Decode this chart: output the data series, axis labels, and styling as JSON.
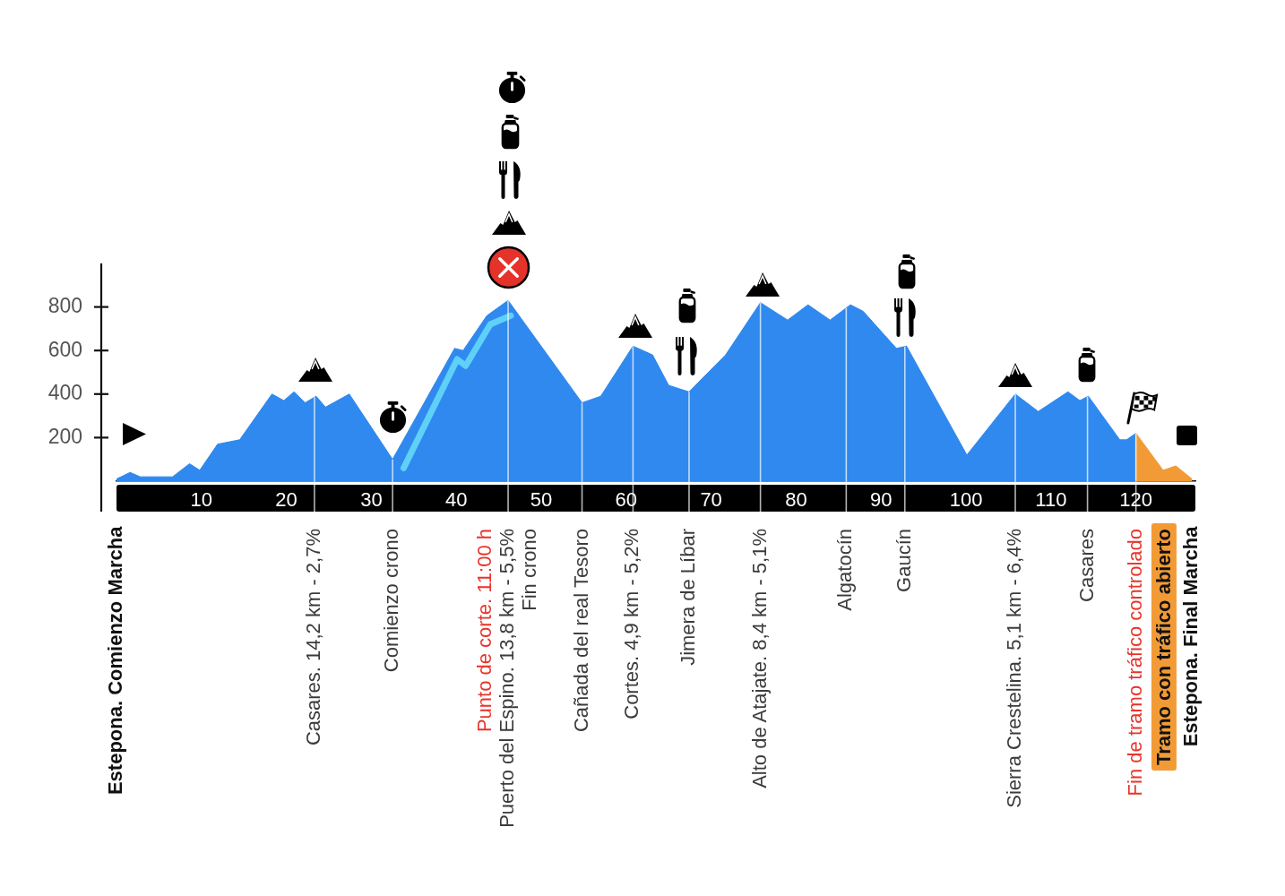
{
  "chart_data": {
    "type": "area",
    "xlim": [
      0,
      127
    ],
    "xticks": [
      10,
      20,
      30,
      40,
      50,
      60,
      70,
      80,
      90,
      100,
      110,
      120
    ],
    "ylim": [
      0,
      1000
    ],
    "yticks": [
      200,
      400,
      600,
      800
    ],
    "series": [
      {
        "type": "area",
        "color": "#2f89ee",
        "x": [
          0,
          1.6,
          2.8,
          6.6,
          8.6,
          9.8,
          11.9,
          14.5,
          18.3,
          19.7,
          20.9,
          22.2,
          23.5,
          24.6,
          27.4,
          32.5,
          39.8,
          40.8,
          43.6,
          46.1,
          54.8,
          57.0,
          60.8,
          63.1,
          65.0,
          67.4,
          71.7,
          75.8,
          79.0,
          81.4,
          84.0,
          86.4,
          87.9,
          91.8,
          93.0,
          100.1,
          105.8,
          108.5,
          112.0,
          113.4,
          114.4,
          118.1,
          118.9,
          120.0
        ],
        "values": [
          10,
          40,
          20,
          20,
          80,
          50,
          170,
          190,
          400,
          370,
          410,
          360,
          390,
          340,
          400,
          100,
          610,
          600,
          760,
          830,
          360,
          390,
          620,
          580,
          440,
          410,
          580,
          820,
          740,
          810,
          740,
          810,
          780,
          610,
          620,
          120,
          400,
          320,
          410,
          370,
          390,
          190,
          190,
          220
        ]
      },
      {
        "type": "area",
        "name": "Tramo con tráfico abierto",
        "color": "#f29b36",
        "x": [
          120.0,
          123.2,
          124.7,
          126.6
        ],
        "values": [
          220,
          50,
          70,
          10
        ]
      },
      {
        "type": "line",
        "color": "#5fd0f8",
        "x": [
          33.8,
          40.1,
          41.1,
          44.0,
          46.4
        ],
        "values": [
          60,
          560,
          530,
          720,
          760
        ]
      }
    ],
    "ref_lines": [
      {
        "axis": "x",
        "value": 23.3,
        "label": "Casares. 14,2 km - 2,7%",
        "color": "#ffffff"
      },
      {
        "axis": "x",
        "value": 32.5,
        "label": "Comienzo crono",
        "color": "#ffffff"
      },
      {
        "axis": "x",
        "value": 46.1,
        "label": "Puerto del Espino. 13,8 km - 5,5%\nFin crono",
        "color": "#ffffff"
      },
      {
        "axis": "x",
        "value": 54.8,
        "label": "Cañada del real Tesoro",
        "color": "#ffffff"
      },
      {
        "axis": "x",
        "value": 60.8,
        "label": "Cortes. 4,9 km - 5,2%",
        "color": "#ffffff"
      },
      {
        "axis": "x",
        "value": 67.4,
        "label": "Jimera de Líbar",
        "color": "#ffffff"
      },
      {
        "axis": "x",
        "value": 75.8,
        "label": "Alto de Atajate. 8,4 km - 5,1%",
        "color": "#ffffff"
      },
      {
        "axis": "x",
        "value": 85.9,
        "label": "Algatocín",
        "color": "#ffffff"
      },
      {
        "axis": "x",
        "value": 92.8,
        "label": "Gaucín",
        "color": "#ffffff"
      },
      {
        "axis": "x",
        "value": 105.8,
        "label": "Sierra Crestelina. 5,1 km - 6,4%",
        "color": "#ffffff"
      },
      {
        "axis": "x",
        "value": 114.3,
        "label": "Casares",
        "color": "#ffffff"
      },
      {
        "axis": "x",
        "value": 120.0,
        "color": "#ffffff"
      }
    ],
    "annotations": [
      {
        "text": "Estepona. Comienzo Marcha",
        "x": 0,
        "y": 10
      },
      {
        "text": "Punto de corte. 11:00 h",
        "x": 46.1,
        "y": 0
      },
      {
        "text": "Fin de tramo tráfico controlado",
        "x": 120.0,
        "y": 0
      },
      {
        "text": "Estepona. Final Marcha",
        "x": 126.6,
        "y": 10
      }
    ]
  }
}
